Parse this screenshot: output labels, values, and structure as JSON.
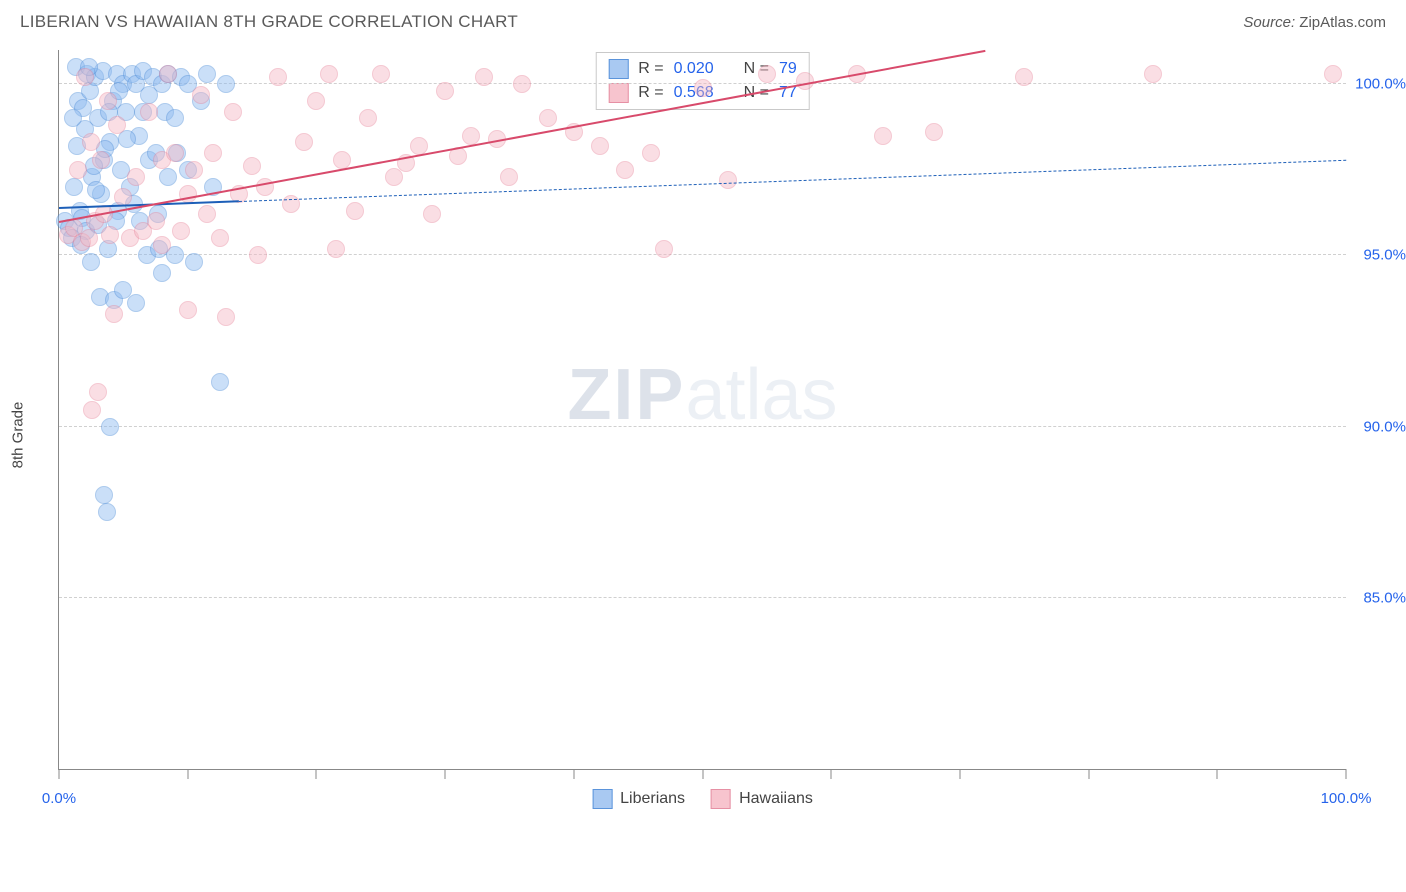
{
  "title": "LIBERIAN VS HAWAIIAN 8TH GRADE CORRELATION CHART",
  "source_label": "Source:",
  "source_name": "ZipAtlas.com",
  "y_axis_label": "8th Grade",
  "watermark": {
    "part1": "ZIP",
    "part2": "atlas"
  },
  "chart": {
    "type": "scatter",
    "background_color": "#ffffff",
    "grid_color": "#d0d0d0",
    "axis_color": "#888888",
    "xlim": [
      0,
      100
    ],
    "ylim": [
      80,
      101
    ],
    "x_ticks": [
      0,
      10,
      20,
      30,
      40,
      50,
      60,
      70,
      80,
      90,
      100
    ],
    "x_tick_labels": {
      "0": "0.0%",
      "100": "100.0%"
    },
    "y_ticks": [
      85,
      90,
      95,
      100
    ],
    "y_tick_labels": {
      "85": "85.0%",
      "90": "90.0%",
      "95": "95.0%",
      "100": "100.0%"
    },
    "label_color": "#2563eb",
    "label_fontsize": 15,
    "title_color": "#5a5a5a",
    "title_fontsize": 17,
    "marker_radius": 9,
    "marker_opacity": 0.45,
    "marker_border_opacity": 0.7
  },
  "series": [
    {
      "name": "Liberians",
      "color_fill": "#8bb9f0",
      "color_stroke": "#4a8bd8",
      "legend_fill": "#a9c9f2",
      "legend_stroke": "#5b94db",
      "stats": {
        "R": "0.020",
        "N": "79"
      },
      "trend": {
        "x1": 0,
        "y1": 96.4,
        "x2": 100,
        "y2": 97.8,
        "solid_until_x": 14,
        "color": "#1d5fb8",
        "width": 2.5
      },
      "points": [
        [
          0.5,
          96.0
        ],
        [
          0.8,
          95.8
        ],
        [
          1.0,
          95.5
        ],
        [
          1.2,
          97.0
        ],
        [
          1.3,
          100.5
        ],
        [
          1.5,
          99.5
        ],
        [
          1.6,
          96.3
        ],
        [
          1.8,
          96.1
        ],
        [
          2.0,
          98.7
        ],
        [
          2.1,
          95.7
        ],
        [
          2.2,
          100.3
        ],
        [
          2.4,
          99.8
        ],
        [
          2.5,
          94.8
        ],
        [
          2.6,
          97.3
        ],
        [
          2.8,
          100.2
        ],
        [
          3.0,
          95.9
        ],
        [
          3.0,
          99.0
        ],
        [
          3.2,
          93.8
        ],
        [
          3.3,
          96.8
        ],
        [
          3.4,
          100.4
        ],
        [
          3.5,
          88.0
        ],
        [
          3.5,
          97.8
        ],
        [
          3.7,
          87.5
        ],
        [
          3.8,
          95.2
        ],
        [
          4.0,
          90.0
        ],
        [
          4.0,
          98.3
        ],
        [
          4.2,
          99.5
        ],
        [
          4.3,
          93.7
        ],
        [
          4.5,
          100.3
        ],
        [
          4.6,
          96.3
        ],
        [
          4.8,
          97.5
        ],
        [
          5.0,
          94.0
        ],
        [
          5.0,
          100.0
        ],
        [
          5.2,
          99.2
        ],
        [
          5.5,
          97.0
        ],
        [
          5.7,
          100.3
        ],
        [
          5.8,
          96.5
        ],
        [
          6.0,
          100.0
        ],
        [
          6.0,
          93.6
        ],
        [
          6.2,
          98.5
        ],
        [
          6.5,
          99.2
        ],
        [
          6.5,
          100.4
        ],
        [
          6.8,
          95.0
        ],
        [
          7.0,
          97.8
        ],
        [
          7.0,
          99.7
        ],
        [
          7.3,
          100.2
        ],
        [
          7.5,
          98.0
        ],
        [
          7.8,
          95.2
        ],
        [
          8.0,
          100.0
        ],
        [
          8.0,
          94.5
        ],
        [
          8.2,
          99.2
        ],
        [
          8.5,
          97.3
        ],
        [
          8.5,
          100.3
        ],
        [
          9.0,
          95.0
        ],
        [
          9.0,
          99.0
        ],
        [
          9.5,
          100.2
        ],
        [
          10.0,
          97.5
        ],
        [
          10.0,
          100.0
        ],
        [
          10.5,
          94.8
        ],
        [
          11.0,
          99.5
        ],
        [
          11.5,
          100.3
        ],
        [
          12.0,
          97.0
        ],
        [
          12.5,
          91.3
        ],
        [
          13.0,
          100.0
        ],
        [
          2.3,
          100.5
        ],
        [
          3.9,
          99.2
        ],
        [
          1.4,
          98.2
        ],
        [
          2.7,
          97.6
        ],
        [
          4.4,
          96.0
        ],
        [
          1.9,
          99.3
        ],
        [
          6.3,
          96.0
        ],
        [
          1.1,
          99.0
        ],
        [
          5.3,
          98.4
        ],
        [
          4.7,
          99.8
        ],
        [
          2.9,
          96.9
        ],
        [
          7.7,
          96.2
        ],
        [
          3.6,
          98.1
        ],
        [
          9.2,
          98.0
        ],
        [
          1.7,
          95.3
        ]
      ]
    },
    {
      "name": "Hawaiians",
      "color_fill": "#f5b8c4",
      "color_stroke": "#e8879c",
      "legend_fill": "#f7c4ce",
      "legend_stroke": "#e690a4",
      "stats": {
        "R": "0.568",
        "N": "77"
      },
      "trend": {
        "x1": 0,
        "y1": 96.0,
        "x2": 72,
        "y2": 101.0,
        "solid_until_x": 72,
        "color": "#d84a6b",
        "width": 2.5
      },
      "points": [
        [
          0.7,
          95.6
        ],
        [
          1.2,
          95.8
        ],
        [
          1.5,
          97.5
        ],
        [
          1.8,
          95.4
        ],
        [
          2.0,
          100.2
        ],
        [
          2.3,
          95.5
        ],
        [
          2.5,
          98.3
        ],
        [
          2.8,
          96.0
        ],
        [
          3.0,
          91.0
        ],
        [
          3.3,
          97.8
        ],
        [
          3.5,
          96.2
        ],
        [
          3.8,
          99.5
        ],
        [
          4.0,
          95.6
        ],
        [
          4.5,
          98.8
        ],
        [
          5.0,
          96.7
        ],
        [
          5.5,
          95.5
        ],
        [
          6.0,
          97.3
        ],
        [
          6.5,
          95.7
        ],
        [
          7.0,
          99.2
        ],
        [
          7.5,
          96.0
        ],
        [
          8.0,
          97.8
        ],
        [
          8.0,
          95.3
        ],
        [
          8.5,
          100.3
        ],
        [
          9.0,
          98.0
        ],
        [
          9.5,
          95.7
        ],
        [
          10.0,
          96.8
        ],
        [
          10.5,
          97.5
        ],
        [
          11.0,
          99.7
        ],
        [
          11.5,
          96.2
        ],
        [
          12.0,
          98.0
        ],
        [
          12.5,
          95.5
        ],
        [
          13.0,
          93.2
        ],
        [
          13.5,
          99.2
        ],
        [
          14.0,
          96.8
        ],
        [
          15.0,
          97.6
        ],
        [
          15.5,
          95.0
        ],
        [
          16.0,
          97.0
        ],
        [
          17.0,
          100.2
        ],
        [
          18.0,
          96.5
        ],
        [
          19.0,
          98.3
        ],
        [
          20.0,
          99.5
        ],
        [
          21.0,
          100.3
        ],
        [
          21.5,
          95.2
        ],
        [
          22.0,
          97.8
        ],
        [
          23.0,
          96.3
        ],
        [
          24.0,
          99.0
        ],
        [
          25.0,
          100.3
        ],
        [
          26.0,
          97.3
        ],
        [
          27.0,
          97.7
        ],
        [
          28.0,
          98.2
        ],
        [
          29.0,
          96.2
        ],
        [
          30.0,
          99.8
        ],
        [
          31.0,
          97.9
        ],
        [
          32.0,
          98.5
        ],
        [
          33.0,
          100.2
        ],
        [
          34.0,
          98.4
        ],
        [
          35.0,
          97.3
        ],
        [
          36.0,
          100.0
        ],
        [
          38.0,
          99.0
        ],
        [
          40.0,
          98.6
        ],
        [
          42.0,
          98.2
        ],
        [
          44.0,
          97.5
        ],
        [
          46.0,
          98.0
        ],
        [
          47.0,
          95.2
        ],
        [
          50.0,
          99.9
        ],
        [
          52.0,
          97.2
        ],
        [
          55.0,
          100.3
        ],
        [
          58.0,
          100.1
        ],
        [
          62.0,
          100.3
        ],
        [
          64.0,
          98.5
        ],
        [
          68.0,
          98.6
        ],
        [
          75.0,
          100.2
        ],
        [
          85.0,
          100.3
        ],
        [
          99.0,
          100.3
        ],
        [
          2.6,
          90.5
        ],
        [
          4.3,
          93.3
        ],
        [
          10.0,
          93.4
        ]
      ]
    }
  ],
  "stats_labels": {
    "R": "R =",
    "N": "N ="
  },
  "legend_labels": {
    "0": "Liberians",
    "1": "Hawaiians"
  }
}
